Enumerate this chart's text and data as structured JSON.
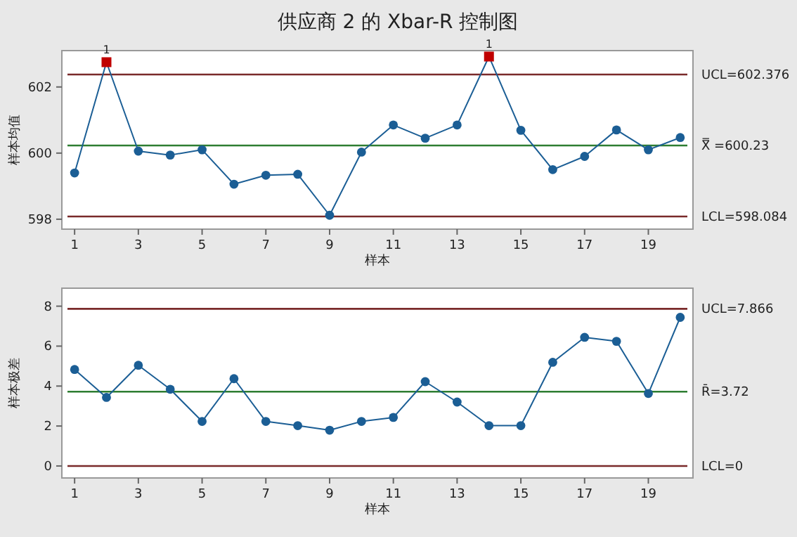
{
  "chart_data": [
    {
      "type": "line",
      "title": "供应商 2 的 Xbar-R 控制图",
      "xlabel": "样本",
      "ylabel": "样本均值",
      "marker": "circle",
      "x": [
        1,
        2,
        3,
        4,
        5,
        6,
        7,
        8,
        9,
        10,
        11,
        12,
        13,
        14,
        15,
        16,
        17,
        18,
        19,
        20
      ],
      "series": [
        {
          "color": "#1b5e95",
          "values": [
            599.4,
            602.75,
            600.06,
            599.94,
            600.1,
            599.06,
            599.33,
            599.36,
            598.12,
            600.03,
            600.85,
            600.45,
            600.85,
            602.92,
            600.69,
            599.5,
            599.9,
            600.7,
            600.1,
            600.47
          ],
          "colors": [
            "#1b5e95",
            "#c00000",
            "#1b5e95",
            "#1b5e95",
            "#1b5e95",
            "#1b5e95",
            "#1b5e95",
            "#1b5e95",
            "#1b5e95",
            "#1b5e95",
            "#1b5e95",
            "#1b5e95",
            "#1b5e95",
            "#c00000",
            "#1b5e95",
            "#1b5e95",
            "#1b5e95",
            "#1b5e95",
            "#1b5e95",
            "#1b5e95"
          ]
        }
      ],
      "ref_lines": [
        {
          "axis": "y",
          "value": 602.376,
          "label": "UCL=602.376",
          "color": "#7a2a2a"
        },
        {
          "axis": "y",
          "value": 600.23,
          "label": "X̿ =600.23",
          "color": "#2e7d32"
        },
        {
          "axis": "y",
          "value": 598.084,
          "label": "LCL=598.084",
          "color": "#7a2a2a"
        }
      ],
      "annotations": [
        {
          "text": "1",
          "x": 2,
          "y": 602.75
        },
        {
          "text": "1",
          "x": 14,
          "y": 602.92
        }
      ],
      "xlim": [
        0.6,
        20.4
      ],
      "ylim": [
        597.7,
        603.1
      ],
      "xticks": [
        1,
        3,
        5,
        7,
        9,
        11,
        13,
        15,
        17,
        19
      ],
      "yticks": [
        598,
        600,
        602
      ]
    },
    {
      "type": "line",
      "xlabel": "样本",
      "ylabel": "样本极差",
      "marker": "circle",
      "x": [
        1,
        2,
        3,
        4,
        5,
        6,
        7,
        8,
        9,
        10,
        11,
        12,
        13,
        14,
        15,
        16,
        17,
        18,
        19,
        20
      ],
      "series": [
        {
          "color": "#1b5e95",
          "values": [
            4.83,
            3.43,
            5.04,
            3.84,
            2.23,
            4.37,
            2.23,
            2.02,
            1.79,
            2.23,
            2.43,
            4.22,
            3.2,
            2.02,
            2.02,
            5.19,
            6.44,
            6.24,
            3.63,
            7.44
          ]
        }
      ],
      "ref_lines": [
        {
          "axis": "y",
          "value": 7.866,
          "label": "UCL=7.866",
          "color": "#7a2a2a"
        },
        {
          "axis": "y",
          "value": 3.72,
          "label": "R̄=3.72",
          "color": "#2e7d32"
        },
        {
          "axis": "y",
          "value": 0,
          "label": "LCL=0",
          "color": "#7a2a2a"
        }
      ],
      "xlim": [
        0.6,
        20.4
      ],
      "ylim": [
        -0.6,
        8.9
      ],
      "xticks": [
        1,
        3,
        5,
        7,
        9,
        11,
        13,
        15,
        17,
        19
      ],
      "yticks": [
        0,
        2,
        4,
        6,
        8
      ]
    }
  ]
}
